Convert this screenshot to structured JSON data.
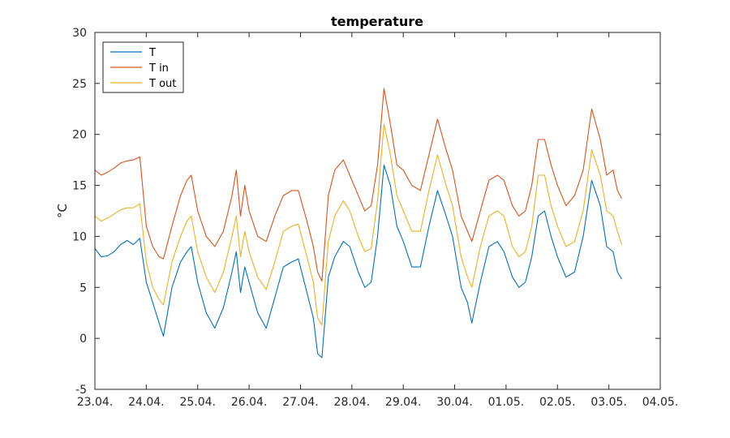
{
  "chart_data": {
    "type": "line",
    "title": "temperature",
    "xlabel": "",
    "ylabel": "°C",
    "xlim": [
      "2020-04-23",
      "2020-05-04"
    ],
    "ylim": [
      -5,
      30
    ],
    "x_ticks": [
      "2020-04-23",
      "2020-04-24",
      "2020-04-25",
      "2020-04-26",
      "2020-04-27",
      "2020-04-28",
      "2020-04-29",
      "2020-04-30",
      "2020-05-01",
      "2020-05-02",
      "2020-05-03",
      "2020-05-04"
    ],
    "x_tick_labels": [
      "23.04.",
      "24.04.",
      "25.04.",
      "26.04.",
      "27.04.",
      "28.04.",
      "29.04.",
      "30.04.",
      "01.05.",
      "02.05.",
      "03.05.",
      "04.05."
    ],
    "y_ticks": [
      -5,
      0,
      5,
      10,
      15,
      20,
      25,
      30
    ],
    "y_tick_labels": [
      "-5",
      "0",
      "5",
      "10",
      "15",
      "20",
      "25",
      "30"
    ],
    "grid": false,
    "legend": "top-left",
    "series": [
      {
        "name": "T",
        "color": "#0072BD",
        "points": [
          [
            "2020-04-23 00:00",
            8.8
          ],
          [
            "2020-04-23 03:00",
            8.0
          ],
          [
            "2020-04-23 06:00",
            8.1
          ],
          [
            "2020-04-23 09:00",
            8.5
          ],
          [
            "2020-04-23 12:00",
            9.2
          ],
          [
            "2020-04-23 15:00",
            9.6
          ],
          [
            "2020-04-23 18:00",
            9.2
          ],
          [
            "2020-04-23 21:00",
            9.8
          ],
          [
            "2020-04-24 00:00",
            5.5
          ],
          [
            "2020-04-24 03:00",
            3.5
          ],
          [
            "2020-04-24 06:00",
            1.5
          ],
          [
            "2020-04-24 08:00",
            0.2
          ],
          [
            "2020-04-24 12:00",
            5.0
          ],
          [
            "2020-04-24 16:00",
            7.5
          ],
          [
            "2020-04-24 19:00",
            8.5
          ],
          [
            "2020-04-24 21:00",
            9.0
          ],
          [
            "2020-04-25 00:00",
            5.5
          ],
          [
            "2020-04-25 04:00",
            2.5
          ],
          [
            "2020-04-25 08:00",
            1.0
          ],
          [
            "2020-04-25 12:00",
            3.0
          ],
          [
            "2020-04-25 16:00",
            6.5
          ],
          [
            "2020-04-25 18:00",
            8.5
          ],
          [
            "2020-04-25 20:00",
            4.5
          ],
          [
            "2020-04-25 22:00",
            7.0
          ],
          [
            "2020-04-26 00:00",
            5.5
          ],
          [
            "2020-04-26 04:00",
            2.5
          ],
          [
            "2020-04-26 08:00",
            1.0
          ],
          [
            "2020-04-26 12:00",
            4.0
          ],
          [
            "2020-04-26 16:00",
            7.0
          ],
          [
            "2020-04-26 20:00",
            7.5
          ],
          [
            "2020-04-26 23:00",
            7.8
          ],
          [
            "2020-04-27 03:00",
            4.5
          ],
          [
            "2020-04-27 06:00",
            2.0
          ],
          [
            "2020-04-27 08:00",
            -1.5
          ],
          [
            "2020-04-27 10:00",
            -1.9
          ],
          [
            "2020-04-27 13:00",
            6.0
          ],
          [
            "2020-04-27 16:00",
            8.0
          ],
          [
            "2020-04-27 20:00",
            9.5
          ],
          [
            "2020-04-27 23:00",
            9.0
          ],
          [
            "2020-04-28 03:00",
            6.5
          ],
          [
            "2020-04-28 06:00",
            5.0
          ],
          [
            "2020-04-28 09:00",
            5.5
          ],
          [
            "2020-04-28 12:00",
            10.0
          ],
          [
            "2020-04-28 15:00",
            17.0
          ],
          [
            "2020-04-28 18:00",
            15.0
          ],
          [
            "2020-04-28 21:00",
            11.0
          ],
          [
            "2020-04-29 00:00",
            9.5
          ],
          [
            "2020-04-29 04:00",
            7.0
          ],
          [
            "2020-04-29 08:00",
            7.0
          ],
          [
            "2020-04-29 12:00",
            11.0
          ],
          [
            "2020-04-29 16:00",
            14.5
          ],
          [
            "2020-04-29 20:00",
            12.0
          ],
          [
            "2020-04-29 23:00",
            10.0
          ],
          [
            "2020-04-30 03:00",
            5.0
          ],
          [
            "2020-04-30 06:00",
            3.5
          ],
          [
            "2020-04-30 08:00",
            1.5
          ],
          [
            "2020-04-30 12:00",
            5.5
          ],
          [
            "2020-04-30 16:00",
            9.0
          ],
          [
            "2020-04-30 20:00",
            9.5
          ],
          [
            "2020-04-30 23:00",
            8.5
          ],
          [
            "2020-05-01 03:00",
            6.0
          ],
          [
            "2020-05-01 06:00",
            5.0
          ],
          [
            "2020-05-01 09:00",
            5.5
          ],
          [
            "2020-05-01 12:00",
            8.0
          ],
          [
            "2020-05-01 15:00",
            12.0
          ],
          [
            "2020-05-01 18:00",
            12.5
          ],
          [
            "2020-05-01 21:00",
            10.0
          ],
          [
            "2020-05-02 00:00",
            8.0
          ],
          [
            "2020-05-02 04:00",
            6.0
          ],
          [
            "2020-05-02 08:00",
            6.5
          ],
          [
            "2020-05-02 12:00",
            10.0
          ],
          [
            "2020-05-02 16:00",
            15.5
          ],
          [
            "2020-05-02 20:00",
            13.0
          ],
          [
            "2020-05-02 23:00",
            9.0
          ],
          [
            "2020-05-03 02:00",
            8.5
          ],
          [
            "2020-05-03 04:00",
            6.5
          ],
          [
            "2020-05-03 06:00",
            5.8
          ]
        ]
      },
      {
        "name": "T in",
        "color": "#D95319",
        "points": [
          [
            "2020-04-23 00:00",
            16.5
          ],
          [
            "2020-04-23 03:00",
            16.0
          ],
          [
            "2020-04-23 06:00",
            16.3
          ],
          [
            "2020-04-23 09:00",
            16.7
          ],
          [
            "2020-04-23 12:00",
            17.2
          ],
          [
            "2020-04-23 15:00",
            17.4
          ],
          [
            "2020-04-23 18:00",
            17.5
          ],
          [
            "2020-04-23 21:00",
            17.8
          ],
          [
            "2020-04-24 00:00",
            11.0
          ],
          [
            "2020-04-24 03:00",
            9.0
          ],
          [
            "2020-04-24 06:00",
            8.0
          ],
          [
            "2020-04-24 08:00",
            7.8
          ],
          [
            "2020-04-24 12:00",
            11.0
          ],
          [
            "2020-04-24 16:00",
            14.0
          ],
          [
            "2020-04-24 19:00",
            15.5
          ],
          [
            "2020-04-24 21:00",
            16.0
          ],
          [
            "2020-04-25 00:00",
            12.5
          ],
          [
            "2020-04-25 04:00",
            10.0
          ],
          [
            "2020-04-25 08:00",
            9.0
          ],
          [
            "2020-04-25 12:00",
            10.5
          ],
          [
            "2020-04-25 16:00",
            14.0
          ],
          [
            "2020-04-25 18:00",
            16.5
          ],
          [
            "2020-04-25 20:00",
            12.0
          ],
          [
            "2020-04-25 22:00",
            15.0
          ],
          [
            "2020-04-26 00:00",
            12.5
          ],
          [
            "2020-04-26 04:00",
            10.0
          ],
          [
            "2020-04-26 08:00",
            9.5
          ],
          [
            "2020-04-26 12:00",
            12.0
          ],
          [
            "2020-04-26 16:00",
            14.0
          ],
          [
            "2020-04-26 20:00",
            14.5
          ],
          [
            "2020-04-26 23:00",
            14.5
          ],
          [
            "2020-04-27 03:00",
            11.5
          ],
          [
            "2020-04-27 06:00",
            9.0
          ],
          [
            "2020-04-27 08:00",
            6.5
          ],
          [
            "2020-04-27 10:00",
            5.6
          ],
          [
            "2020-04-27 13:00",
            14.0
          ],
          [
            "2020-04-27 16:00",
            16.5
          ],
          [
            "2020-04-27 20:00",
            17.5
          ],
          [
            "2020-04-27 23:00",
            16.0
          ],
          [
            "2020-04-28 03:00",
            14.0
          ],
          [
            "2020-04-28 06:00",
            12.5
          ],
          [
            "2020-04-28 09:00",
            13.0
          ],
          [
            "2020-04-28 12:00",
            17.0
          ],
          [
            "2020-04-28 15:00",
            24.5
          ],
          [
            "2020-04-28 18:00",
            21.0
          ],
          [
            "2020-04-28 21:00",
            17.0
          ],
          [
            "2020-04-29 00:00",
            16.5
          ],
          [
            "2020-04-29 04:00",
            15.0
          ],
          [
            "2020-04-29 08:00",
            14.5
          ],
          [
            "2020-04-29 12:00",
            18.0
          ],
          [
            "2020-04-29 16:00",
            21.5
          ],
          [
            "2020-04-29 20:00",
            18.5
          ],
          [
            "2020-04-29 23:00",
            16.5
          ],
          [
            "2020-04-30 03:00",
            12.0
          ],
          [
            "2020-04-30 06:00",
            10.5
          ],
          [
            "2020-04-30 08:00",
            9.5
          ],
          [
            "2020-04-30 12:00",
            12.5
          ],
          [
            "2020-04-30 16:00",
            15.5
          ],
          [
            "2020-04-30 20:00",
            16.0
          ],
          [
            "2020-04-30 23:00",
            15.5
          ],
          [
            "2020-05-01 03:00",
            13.0
          ],
          [
            "2020-05-01 06:00",
            12.0
          ],
          [
            "2020-05-01 09:00",
            12.5
          ],
          [
            "2020-05-01 12:00",
            15.0
          ],
          [
            "2020-05-01 15:00",
            19.5
          ],
          [
            "2020-05-01 18:00",
            19.5
          ],
          [
            "2020-05-01 21:00",
            17.0
          ],
          [
            "2020-05-02 00:00",
            15.0
          ],
          [
            "2020-05-02 04:00",
            13.0
          ],
          [
            "2020-05-02 08:00",
            14.0
          ],
          [
            "2020-05-02 12:00",
            16.5
          ],
          [
            "2020-05-02 16:00",
            22.5
          ],
          [
            "2020-05-02 20:00",
            19.5
          ],
          [
            "2020-05-02 23:00",
            16.0
          ],
          [
            "2020-05-03 02:00",
            16.5
          ],
          [
            "2020-05-03 04:00",
            14.5
          ],
          [
            "2020-05-03 06:00",
            13.7
          ]
        ]
      },
      {
        "name": "T out",
        "color": "#EDB120",
        "points": [
          [
            "2020-04-23 00:00",
            12.0
          ],
          [
            "2020-04-23 03:00",
            11.5
          ],
          [
            "2020-04-23 06:00",
            11.8
          ],
          [
            "2020-04-23 09:00",
            12.2
          ],
          [
            "2020-04-23 12:00",
            12.6
          ],
          [
            "2020-04-23 15:00",
            12.8
          ],
          [
            "2020-04-23 18:00",
            12.8
          ],
          [
            "2020-04-23 21:00",
            13.2
          ],
          [
            "2020-04-24 00:00",
            7.5
          ],
          [
            "2020-04-24 03:00",
            5.0
          ],
          [
            "2020-04-24 06:00",
            3.8
          ],
          [
            "2020-04-24 08:00",
            3.3
          ],
          [
            "2020-04-24 12:00",
            7.5
          ],
          [
            "2020-04-24 16:00",
            10.0
          ],
          [
            "2020-04-24 19:00",
            11.5
          ],
          [
            "2020-04-24 21:00",
            12.0
          ],
          [
            "2020-04-25 00:00",
            8.5
          ],
          [
            "2020-04-25 04:00",
            6.0
          ],
          [
            "2020-04-25 08:00",
            4.5
          ],
          [
            "2020-04-25 12:00",
            6.5
          ],
          [
            "2020-04-25 16:00",
            10.0
          ],
          [
            "2020-04-25 18:00",
            12.0
          ],
          [
            "2020-04-25 20:00",
            8.0
          ],
          [
            "2020-04-25 22:00",
            10.5
          ],
          [
            "2020-04-26 00:00",
            8.5
          ],
          [
            "2020-04-26 04:00",
            6.0
          ],
          [
            "2020-04-26 08:00",
            4.8
          ],
          [
            "2020-04-26 12:00",
            7.5
          ],
          [
            "2020-04-26 16:00",
            10.5
          ],
          [
            "2020-04-26 20:00",
            11.0
          ],
          [
            "2020-04-26 23:00",
            11.2
          ],
          [
            "2020-04-27 03:00",
            8.0
          ],
          [
            "2020-04-27 06:00",
            5.5
          ],
          [
            "2020-04-27 08:00",
            2.0
          ],
          [
            "2020-04-27 10:00",
            1.3
          ],
          [
            "2020-04-27 13:00",
            9.5
          ],
          [
            "2020-04-27 16:00",
            12.0
          ],
          [
            "2020-04-27 20:00",
            13.5
          ],
          [
            "2020-04-27 23:00",
            12.5
          ],
          [
            "2020-04-28 03:00",
            10.0
          ],
          [
            "2020-04-28 06:00",
            8.5
          ],
          [
            "2020-04-28 09:00",
            8.8
          ],
          [
            "2020-04-28 12:00",
            13.5
          ],
          [
            "2020-04-28 15:00",
            21.0
          ],
          [
            "2020-04-28 18:00",
            18.0
          ],
          [
            "2020-04-28 21:00",
            14.0
          ],
          [
            "2020-04-29 00:00",
            12.5
          ],
          [
            "2020-04-29 04:00",
            10.5
          ],
          [
            "2020-04-29 08:00",
            10.5
          ],
          [
            "2020-04-29 12:00",
            14.5
          ],
          [
            "2020-04-29 16:00",
            18.0
          ],
          [
            "2020-04-29 20:00",
            15.0
          ],
          [
            "2020-04-29 23:00",
            13.0
          ],
          [
            "2020-04-30 03:00",
            8.0
          ],
          [
            "2020-04-30 06:00",
            6.0
          ],
          [
            "2020-04-30 08:00",
            5.0
          ],
          [
            "2020-04-30 12:00",
            9.0
          ],
          [
            "2020-04-30 16:00",
            12.0
          ],
          [
            "2020-04-30 20:00",
            12.5
          ],
          [
            "2020-04-30 23:00",
            12.0
          ],
          [
            "2020-05-01 03:00",
            9.0
          ],
          [
            "2020-05-01 06:00",
            8.0
          ],
          [
            "2020-05-01 09:00",
            8.5
          ],
          [
            "2020-05-01 12:00",
            11.0
          ],
          [
            "2020-05-01 15:00",
            16.0
          ],
          [
            "2020-05-01 18:00",
            16.0
          ],
          [
            "2020-05-01 21:00",
            13.0
          ],
          [
            "2020-05-02 00:00",
            11.0
          ],
          [
            "2020-05-02 04:00",
            9.0
          ],
          [
            "2020-05-02 08:00",
            9.5
          ],
          [
            "2020-05-02 12:00",
            12.5
          ],
          [
            "2020-05-02 16:00",
            18.5
          ],
          [
            "2020-05-02 20:00",
            16.0
          ],
          [
            "2020-05-02 23:00",
            12.5
          ],
          [
            "2020-05-03 02:00",
            12.0
          ],
          [
            "2020-05-03 04:00",
            10.5
          ],
          [
            "2020-05-03 06:00",
            9.2
          ]
        ]
      }
    ]
  }
}
